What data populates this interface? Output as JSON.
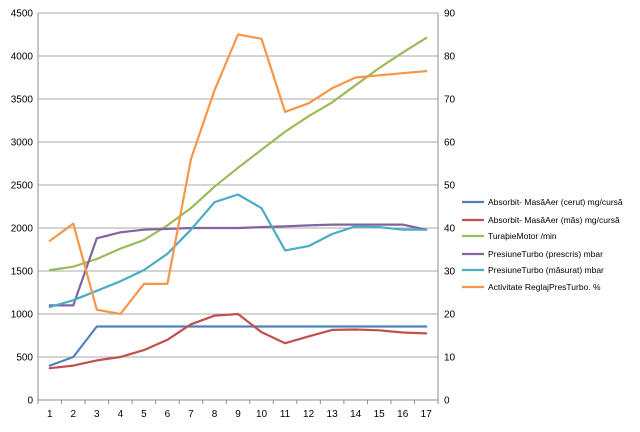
{
  "chart_data": {
    "type": "line",
    "title": "",
    "xlabel": "",
    "ylabel": "",
    "y2label": "",
    "categories": [
      "1",
      "2",
      "3",
      "4",
      "5",
      "6",
      "7",
      "8",
      "9",
      "10",
      "11",
      "12",
      "13",
      "14",
      "15",
      "16",
      "17"
    ],
    "ylim": [
      0,
      4500
    ],
    "y2lim": [
      0,
      90
    ],
    "yticks": [
      "0",
      "500",
      "1000",
      "1500",
      "2000",
      "2500",
      "3000",
      "3500",
      "4000",
      "4500"
    ],
    "y2ticks": [
      "0",
      "10",
      "20",
      "30",
      "40",
      "50",
      "60",
      "70",
      "80",
      "90"
    ],
    "grid": true,
    "legend_position": "right",
    "series": [
      {
        "name": "Absorbit- MasăAer (cerut)  mg/cursă",
        "axis": "left",
        "color": "#4F81BD",
        "values": [
          400,
          500,
          855,
          855,
          855,
          855,
          855,
          855,
          855,
          855,
          855,
          855,
          855,
          855,
          855,
          855,
          855
        ]
      },
      {
        "name": "Absorbit- MasăAer (măs)  mg/cursă",
        "axis": "left",
        "color": "#C0504D",
        "values": [
          370,
          400,
          460,
          500,
          580,
          700,
          880,
          980,
          1000,
          790,
          660,
          740,
          815,
          820,
          810,
          785,
          775
        ]
      },
      {
        "name": "TuraþieMotor  /min",
        "axis": "left",
        "color": "#9BBB59",
        "values": [
          1510,
          1550,
          1640,
          1760,
          1860,
          2030,
          2230,
          2480,
          2700,
          2910,
          3120,
          3300,
          3460,
          3660,
          3860,
          4040,
          4210
        ]
      },
      {
        "name": "PresiuneTurbo (prescris)  mbar",
        "axis": "left",
        "color": "#8064A2",
        "values": [
          1100,
          1100,
          1880,
          1950,
          1980,
          1990,
          2000,
          2000,
          2000,
          2010,
          2020,
          2030,
          2040,
          2040,
          2040,
          2040,
          1980
        ]
      },
      {
        "name": "PresiuneTurbo (măsurat)  mbar",
        "axis": "left",
        "color": "#4BACC6",
        "values": [
          1080,
          1160,
          1270,
          1380,
          1510,
          1700,
          1980,
          2300,
          2390,
          2230,
          1740,
          1790,
          1930,
          2020,
          2010,
          1980,
          1980
        ]
      },
      {
        "name": "Activitate ReglajPresTurbo.  %",
        "axis": "right",
        "color": "#F79646",
        "values": [
          37,
          41,
          21,
          20,
          27,
          27,
          56,
          72,
          85,
          84,
          67,
          69,
          72.5,
          75,
          75.5,
          76,
          76.5
        ]
      }
    ]
  }
}
